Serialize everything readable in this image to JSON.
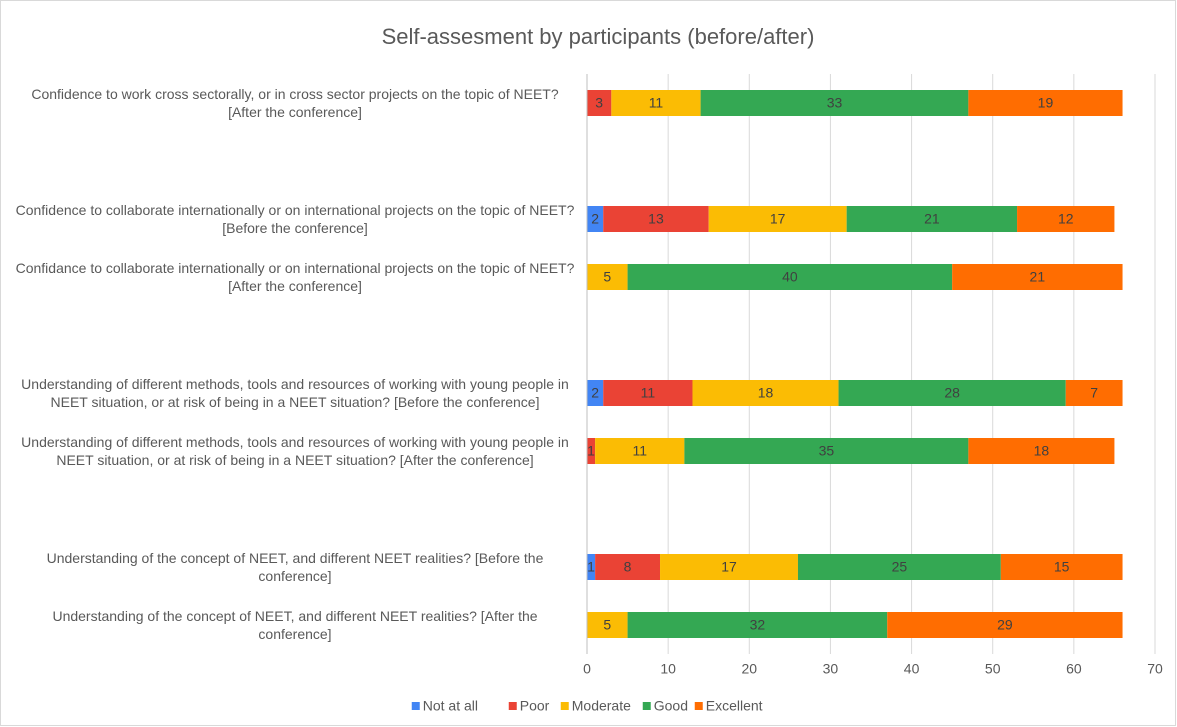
{
  "chart_data": {
    "type": "stacked-bar-horizontal",
    "title": "Self-assesment by participants (before/after)",
    "categories": [
      "Confidence to work cross sectorally, or in cross sector projects on the topic of NEET? [After the conference]",
      null,
      "Confidence to collaborate internationally or on international projects on the topic of NEET? [Before the conference]",
      "Confidance to collaborate internationally or on international projects on the topic of NEET? [After the conference]",
      null,
      "Understanding of different methods, tools and resources of working with young people in NEET situation, or at risk of being in a  NEET situation? [Before the conference]",
      "Understanding of different methods, tools and resources of working with young people in NEET situation, or at risk of being in a  NEET situation? [After the conference]",
      null,
      "Understanding of the concept of NEET, and different NEET realities? [Before the conference]",
      "Understanding of the concept of NEET, and different NEET realities? [After the conference]"
    ],
    "series": [
      {
        "name": "Not at all",
        "color": "#4285f4",
        "values": [
          null,
          null,
          2,
          null,
          null,
          2,
          null,
          null,
          1,
          null
        ]
      },
      {
        "name": "Poor",
        "color": "#ea4335",
        "values": [
          3,
          null,
          13,
          null,
          null,
          11,
          1,
          null,
          8,
          null
        ]
      },
      {
        "name": "Moderate",
        "color": "#fbbc04",
        "values": [
          11,
          null,
          17,
          5,
          null,
          18,
          11,
          null,
          17,
          5
        ]
      },
      {
        "name": "Good",
        "color": "#34a853",
        "values": [
          33,
          null,
          21,
          40,
          null,
          28,
          35,
          null,
          25,
          32
        ]
      },
      {
        "name": "Excellent",
        "color": "#ff6d01",
        "values": [
          19,
          null,
          12,
          21,
          null,
          7,
          18,
          null,
          15,
          29
        ]
      }
    ],
    "xlim": [
      0,
      70
    ],
    "xticks": [
      0,
      10,
      20,
      30,
      40,
      50,
      60,
      70
    ],
    "grid": true,
    "legend": "bottom"
  }
}
